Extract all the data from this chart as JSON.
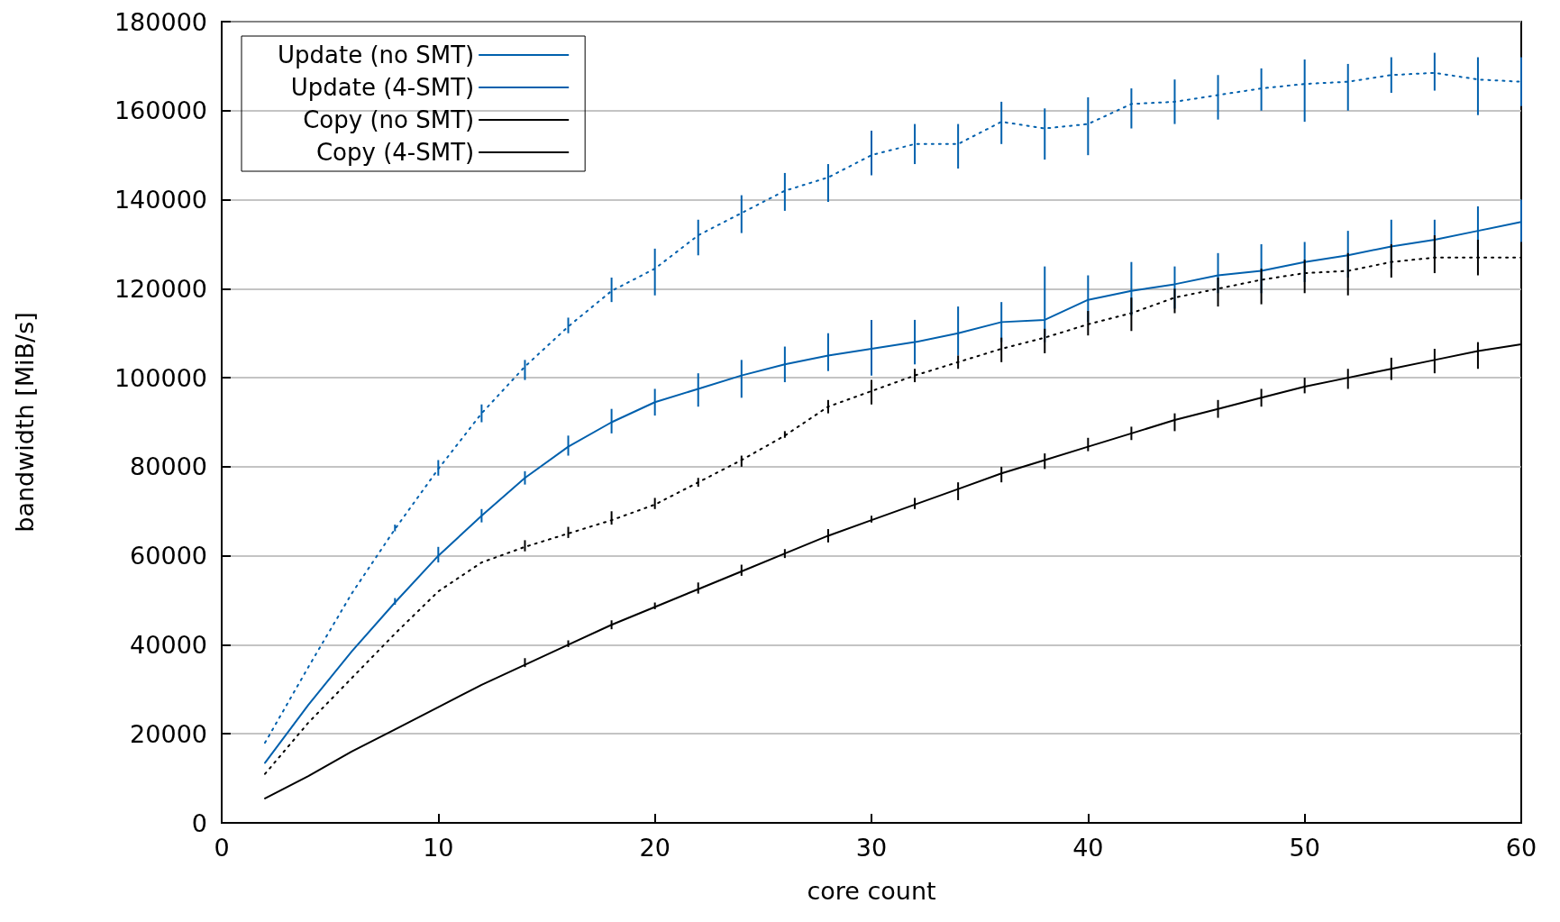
{
  "chart_data": {
    "type": "line",
    "xlabel": "core count",
    "ylabel": "bandwidth [MiB/s]",
    "x": [
      2,
      4,
      6,
      8,
      10,
      12,
      14,
      16,
      18,
      20,
      22,
      24,
      26,
      28,
      30,
      32,
      34,
      36,
      38,
      40,
      42,
      44,
      46,
      48,
      50,
      52,
      54,
      56,
      58,
      60
    ],
    "xlim": [
      0,
      60
    ],
    "xticks": [
      0,
      10,
      20,
      30,
      40,
      50,
      60
    ],
    "ylim": [
      0,
      180000
    ],
    "yticks": [
      0,
      20000,
      40000,
      60000,
      80000,
      100000,
      120000,
      140000,
      160000,
      180000
    ],
    "grid": "y",
    "legend": "top left",
    "marker": "none",
    "series": [
      {
        "name": "Update (no SMT)",
        "color": "#0060ad",
        "line_style": "solid",
        "values": [
          13500,
          26500,
          38500,
          49500,
          60000,
          69000,
          77500,
          84500,
          90000,
          94500,
          97500,
          100500,
          103000,
          105000,
          106500,
          108000,
          110000,
          112500,
          113000,
          117500,
          119500,
          121000,
          123000,
          124000,
          126000,
          127500,
          129500,
          131000,
          133000,
          135000
        ],
        "errors": [
          null,
          null,
          null,
          [
            49000,
            50500
          ],
          [
            58500,
            62000
          ],
          [
            67500,
            70500
          ],
          [
            76000,
            79000
          ],
          [
            82500,
            87000
          ],
          [
            87500,
            93000
          ],
          [
            91500,
            97500
          ],
          [
            93500,
            101000
          ],
          [
            95500,
            104000
          ],
          [
            99000,
            107000
          ],
          [
            101500,
            110000
          ],
          [
            100500,
            113000
          ],
          [
            103000,
            113000
          ],
          [
            105000,
            116000
          ],
          [
            108000,
            117000
          ],
          [
            108000,
            125000
          ],
          [
            112500,
            123000
          ],
          [
            114000,
            126000
          ],
          [
            115500,
            125000
          ],
          [
            119000,
            128000
          ],
          [
            119000,
            130000
          ],
          [
            121500,
            130500
          ],
          [
            122500,
            133000
          ],
          [
            124500,
            135500
          ],
          [
            127000,
            135500
          ],
          [
            127000,
            138500
          ],
          [
            130000,
            140000
          ]
        ]
      },
      {
        "name": "Update (4-SMT)",
        "color": "#0060ad",
        "line_style": "dotted",
        "values": [
          18000,
          35000,
          51500,
          66000,
          79500,
          92000,
          102500,
          111500,
          119500,
          124500,
          132000,
          137000,
          142000,
          145000,
          150000,
          152500,
          152500,
          157500,
          156000,
          157000,
          161500,
          162000,
          163500,
          165000,
          166000,
          166500,
          168000,
          168500,
          167000,
          166500
        ],
        "errors": [
          null,
          null,
          null,
          [
            65500,
            67000
          ],
          [
            78000,
            81500
          ],
          [
            90000,
            94000
          ],
          [
            99500,
            104000
          ],
          [
            110000,
            113500
          ],
          [
            117000,
            122500
          ],
          [
            118500,
            129000
          ],
          [
            127500,
            135500
          ],
          [
            132500,
            141000
          ],
          [
            137500,
            146000
          ],
          [
            139500,
            148000
          ],
          [
            145500,
            155500
          ],
          [
            148000,
            157000
          ],
          [
            147000,
            157000
          ],
          [
            152500,
            162000
          ],
          [
            149000,
            160500
          ],
          [
            150000,
            163000
          ],
          [
            156000,
            165000
          ],
          [
            157000,
            167000
          ],
          [
            158000,
            168000
          ],
          [
            160000,
            169500
          ],
          [
            157500,
            171500
          ],
          [
            160000,
            170500
          ],
          [
            164000,
            172000
          ],
          [
            164500,
            173000
          ],
          [
            159000,
            172000
          ],
          [
            161000,
            172000
          ]
        ]
      },
      {
        "name": "Copy (no SMT)",
        "color": "#000000",
        "line_style": "solid",
        "values": [
          5500,
          10500,
          16000,
          21000,
          26000,
          31000,
          35500,
          40000,
          44500,
          48500,
          52500,
          56500,
          60500,
          64500,
          68000,
          71500,
          75000,
          78500,
          81500,
          84500,
          87500,
          90500,
          93000,
          95500,
          98000,
          100000,
          102000,
          104000,
          106000,
          107500
        ],
        "errors": [
          null,
          null,
          null,
          null,
          null,
          null,
          [
            35000,
            37000
          ],
          [
            39500,
            41000
          ],
          [
            43500,
            45500
          ],
          [
            48000,
            49500
          ],
          [
            51500,
            54000
          ],
          [
            55500,
            58000
          ],
          [
            59500,
            61500
          ],
          [
            63000,
            66000
          ],
          [
            67500,
            69000
          ],
          [
            70500,
            73000
          ],
          [
            72500,
            76500
          ],
          [
            76500,
            80000
          ],
          [
            79500,
            83000
          ],
          [
            83500,
            86500
          ],
          [
            86000,
            89000
          ],
          [
            88000,
            92000
          ],
          [
            91000,
            95000
          ],
          [
            93500,
            97500
          ],
          [
            96500,
            100000
          ],
          [
            97500,
            102000
          ],
          [
            99500,
            104500
          ],
          [
            101000,
            106500
          ],
          [
            102000,
            108000
          ],
          [
            105000,
            111000
          ]
        ]
      },
      {
        "name": "Copy (4-SMT)",
        "color": "#000000",
        "line_style": "dotted",
        "values": [
          11000,
          22500,
          32500,
          42500,
          52000,
          58500,
          62000,
          65000,
          68000,
          71500,
          76500,
          81500,
          87000,
          93500,
          97000,
          100500,
          103500,
          106500,
          109000,
          112000,
          114500,
          118000,
          120000,
          122000,
          123500,
          124000,
          126000,
          127000,
          127000,
          127000
        ],
        "errors": [
          null,
          null,
          null,
          null,
          null,
          null,
          [
            61000,
            63500
          ],
          [
            64000,
            66500
          ],
          [
            67000,
            70000
          ],
          [
            70500,
            73000
          ],
          [
            75500,
            77500
          ],
          [
            80000,
            82500
          ],
          [
            86500,
            88000
          ],
          [
            92000,
            95000
          ],
          [
            94000,
            99500
          ],
          [
            99000,
            102000
          ],
          [
            102000,
            105000
          ],
          [
            103500,
            109000
          ],
          [
            105500,
            111000
          ],
          [
            109500,
            115000
          ],
          [
            110500,
            118000
          ],
          [
            114500,
            120000
          ],
          [
            116000,
            122500
          ],
          [
            116500,
            124500
          ],
          [
            119000,
            126500
          ],
          [
            118500,
            128000
          ],
          [
            122500,
            130000
          ],
          [
            123500,
            132000
          ],
          [
            123000,
            131000
          ],
          [
            123000,
            130500
          ]
        ]
      }
    ]
  }
}
